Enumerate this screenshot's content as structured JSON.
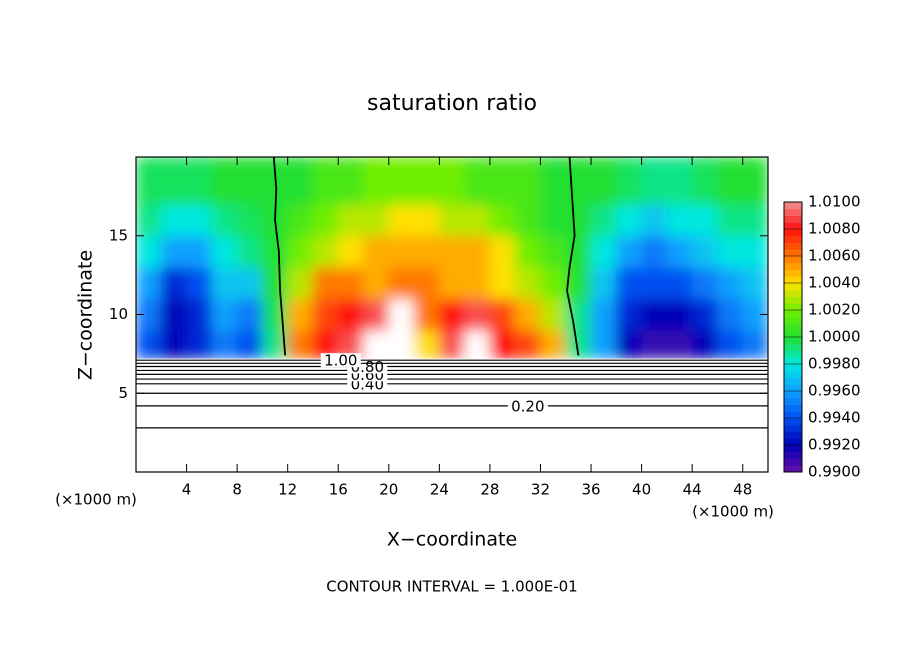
{
  "chart_data": {
    "type": "contour",
    "title": "saturation ratio",
    "xlabel": "X−coordinate",
    "ylabel": "Z−coordinate",
    "x_unit_left": "(×1000 m)",
    "x_unit_right": "(×1000 m)",
    "footnote": "CONTOUR INTERVAL = 1.000E-01",
    "xlim": [
      0,
      50
    ],
    "ylim": [
      0,
      20
    ],
    "xticks": [
      4,
      8,
      12,
      16,
      20,
      24,
      28,
      32,
      36,
      40,
      44,
      48
    ],
    "yticks": [
      5,
      10,
      15
    ],
    "colorbar": {
      "ticks": [
        {
          "value": 0.99,
          "label": "0.9900"
        },
        {
          "value": 0.992,
          "label": "0.9920"
        },
        {
          "value": 0.994,
          "label": "0.9940"
        },
        {
          "value": 0.996,
          "label": "0.9960"
        },
        {
          "value": 0.998,
          "label": "0.9980"
        },
        {
          "value": 1.0,
          "label": "1.0000"
        },
        {
          "value": 1.002,
          "label": "1.0020"
        },
        {
          "value": 1.004,
          "label": "1.0040"
        },
        {
          "value": 1.006,
          "label": "1.0060"
        },
        {
          "value": 1.008,
          "label": "1.0080"
        },
        {
          "value": 1.01,
          "label": "1.0100"
        }
      ],
      "colors": [
        "#6a10a8",
        "#0000b8",
        "#0050f0",
        "#10a0ff",
        "#00e8e0",
        "#20e030",
        "#70ee00",
        "#ffe000",
        "#ff7800",
        "#ff1010",
        "#f09090"
      ]
    },
    "field": {
      "xbins": [
        0,
        2,
        4,
        6,
        8,
        10,
        12,
        14,
        16,
        18,
        20,
        22,
        24,
        26,
        28,
        30,
        32,
        34,
        36,
        38,
        40,
        42,
        44,
        46,
        48,
        50
      ],
      "ybins": [
        7.2,
        9,
        11,
        13,
        15,
        17,
        20
      ],
      "values": [
        [
          0.994,
          0.992,
          0.993,
          0.995,
          0.994,
          0.999,
          1.006,
          1.008,
          1.009,
          1.012,
          1.012,
          1.004,
          1.009,
          1.012,
          1.008,
          1.007,
          1.005,
          0.999,
          0.996,
          0.992,
          0.991,
          0.991,
          0.992,
          0.994,
          0.995
        ],
        [
          0.995,
          0.992,
          0.993,
          0.996,
          0.995,
          0.9995,
          1.005,
          1.007,
          1.008,
          1.009,
          1.012,
          1.006,
          1.008,
          1.009,
          1.007,
          1.005,
          1.003,
          0.999,
          0.996,
          0.993,
          0.992,
          0.992,
          0.993,
          0.995,
          0.996
        ],
        [
          0.996,
          0.993,
          0.994,
          0.997,
          0.997,
          1.0,
          1.003,
          1.006,
          1.006,
          1.005,
          1.006,
          1.006,
          1.005,
          1.005,
          1.004,
          1.003,
          1.002,
          1.0,
          0.997,
          0.994,
          0.994,
          0.994,
          0.995,
          0.996,
          0.997
        ],
        [
          0.998,
          0.996,
          0.996,
          0.998,
          0.999,
          1.0,
          1.002,
          1.003,
          1.004,
          1.005,
          1.005,
          1.005,
          1.005,
          1.005,
          1.004,
          1.002,
          1.001,
          1.0,
          0.998,
          0.996,
          0.995,
          0.996,
          0.997,
          0.998,
          0.998
        ],
        [
          0.999,
          0.998,
          0.998,
          0.999,
          0.9995,
          1.0,
          1.001,
          1.002,
          1.003,
          1.003,
          1.004,
          1.004,
          1.003,
          1.003,
          1.002,
          1.001,
          1.0,
          1.0,
          0.999,
          0.998,
          0.997,
          0.998,
          0.998,
          0.999,
          0.999
        ],
        [
          0.9995,
          0.9995,
          0.9995,
          1.0,
          1.0,
          1.0,
          1.0,
          1.001,
          1.001,
          1.002,
          1.002,
          1.002,
          1.002,
          1.001,
          1.001,
          1.001,
          1.0,
          1.0,
          1.0,
          0.9995,
          0.999,
          0.999,
          0.9995,
          1.0,
          1.0
        ]
      ]
    },
    "saturation_lines": [
      {
        "x": [
          10.9,
          11.1,
          11.0,
          11.3,
          11.4,
          11.6,
          11.8
        ],
        "y": [
          20,
          18,
          16,
          14,
          11.5,
          9.5,
          7.4
        ]
      },
      {
        "x": [
          34.3,
          34.5,
          34.7,
          34.3,
          34.1,
          34.6,
          35.0
        ],
        "y": [
          20,
          17.5,
          15,
          13,
          11.5,
          9.5,
          7.4
        ]
      }
    ],
    "contours": [
      {
        "level": 0.1,
        "y": 2.8
      },
      {
        "level": 0.2,
        "y": 4.2,
        "label": "0.20"
      },
      {
        "level": 0.3,
        "y": 5.0
      },
      {
        "level": 0.4,
        "y": 5.6,
        "label": "0.40"
      },
      {
        "level": 0.5,
        "y": 5.9
      },
      {
        "level": 0.6,
        "y": 6.2,
        "label": "0.60"
      },
      {
        "level": 0.7,
        "y": 6.45
      },
      {
        "level": 0.8,
        "y": 6.7,
        "label": "0.80"
      },
      {
        "level": 0.9,
        "y": 6.9
      },
      {
        "level": 1.0,
        "y": 7.1,
        "label": "1.00"
      }
    ]
  }
}
